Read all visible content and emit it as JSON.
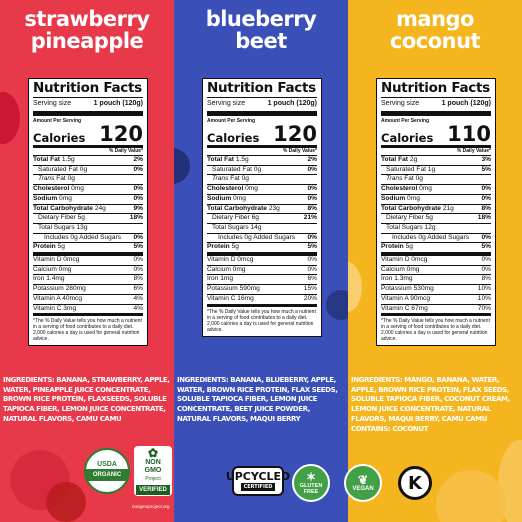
{
  "colors": {
    "strawberry": "#e8394a",
    "blueberry": "#3a4fb8",
    "mango": "#f5b51f"
  },
  "panels": [
    {
      "flavor": [
        "strawberry",
        "pineapple"
      ],
      "label": {
        "title": "Nutrition Facts",
        "serving_size_label": "Serving size",
        "serving_size": "1 pouch (120g)",
        "amount_per_serving": "Amount Per Serving",
        "calories_label": "Calories",
        "calories": "120",
        "dv_header": "% Daily Value*",
        "rows": [
          {
            "label": "Total Fat",
            "amount": "1.5g",
            "pct": "2%"
          },
          {
            "label": "Saturated Fat",
            "amount": "0g",
            "pct": "0%"
          },
          {
            "label": "Trans",
            "amount": "Fat 0g",
            "pct": ""
          },
          {
            "label": "Cholesterol",
            "amount": "0mg",
            "pct": "0%"
          },
          {
            "label": "Sodium",
            "amount": "0mg",
            "pct": "0%"
          },
          {
            "label": "Total Carbohydrate",
            "amount": "24g",
            "pct": "9%"
          },
          {
            "label": "Dietary Fiber",
            "amount": "5g",
            "pct": "18%"
          },
          {
            "label": "Total Sugars",
            "amount": "13g",
            "pct": ""
          },
          {
            "label": "Includes",
            "amount": "0g Added Sugars",
            "pct": "0%"
          },
          {
            "label": "Protein",
            "amount": "5g",
            "pct": "5%"
          }
        ],
        "vitamins": [
          {
            "text": "Vitamin D 0mcg",
            "pct": "0%"
          },
          {
            "text": "Calcium 0mg",
            "pct": "0%"
          },
          {
            "text": "Iron 1.4mg",
            "pct": "8%"
          },
          {
            "text": "Potassium 280mg",
            "pct": "6%"
          },
          {
            "text": "Vitamin A 40mcg",
            "pct": "4%"
          },
          {
            "text": "Vitamin C 3mg",
            "pct": "4%"
          }
        ],
        "footnote": "*The % Daily Value tells you how much a nutrient in a serving of food contributes to a daily diet. 2,000 calories a day is used for general nutrition advice."
      },
      "ingredients": "INGREDIENTS: BANANA, STRAWBERRY, APPLE, WATER, PINEAPPLE JUICE CONCENTRATE, BROWN RICE PROTEIN, FLAXSEEDS, SOLUBLE TAPIOCA FIBER, LEMON JUICE CONCENTRATE, NATURAL FLAVORS, CAMU CAMU",
      "contains": ""
    },
    {
      "flavor": [
        "blueberry",
        "beet"
      ],
      "label": {
        "title": "Nutrition Facts",
        "serving_size_label": "Serving size",
        "serving_size": "1 pouch (120g)",
        "amount_per_serving": "Amount Per Serving",
        "calories_label": "Calories",
        "calories": "120",
        "dv_header": "% Daily Value*",
        "rows": [
          {
            "label": "Total Fat",
            "amount": "1.5g",
            "pct": "2%"
          },
          {
            "label": "Saturated Fat",
            "amount": "0g",
            "pct": "0%"
          },
          {
            "label": "Trans",
            "amount": "Fat 0g",
            "pct": ""
          },
          {
            "label": "Cholesterol",
            "amount": "0mg",
            "pct": "0%"
          },
          {
            "label": "Sodium",
            "amount": "0mg",
            "pct": "0%"
          },
          {
            "label": "Total Carbohydrate",
            "amount": "23g",
            "pct": "8%"
          },
          {
            "label": "Dietary Fiber",
            "amount": "6g",
            "pct": "21%"
          },
          {
            "label": "Total Sugars",
            "amount": "14g",
            "pct": ""
          },
          {
            "label": "Includes",
            "amount": "0g Added Sugars",
            "pct": "0%"
          },
          {
            "label": "Protein",
            "amount": "5g",
            "pct": "5%"
          }
        ],
        "vitamins": [
          {
            "text": "Vitamin D 0mcg",
            "pct": "0%"
          },
          {
            "text": "Calcium 0mg",
            "pct": "0%"
          },
          {
            "text": "Iron 1mg",
            "pct": "6%"
          },
          {
            "text": "Potassium 590mg",
            "pct": "15%"
          },
          {
            "text": "Vitamin C 16mg",
            "pct": "20%"
          }
        ],
        "footnote": "*The % Daily Value tells you how much a nutrient in a serving of food contributes to a daily diet. 2,000 calories a day is used for general nutrition advice."
      },
      "ingredients": "INGREDIENTS: BANANA, BLUEBERRY, APPLE, WATER, BROWN RICE PROTEIN, FLAX SEEDS, SOLUBLE TAPIOCA FIBER, LEMON JUICE CONCENTRATE, BEET JUICE POWDER, NATURAL FLAVORS, MAQUI BERRY",
      "contains": ""
    },
    {
      "flavor": [
        "mango",
        "coconut"
      ],
      "label": {
        "title": "Nutrition Facts",
        "serving_size_label": "Serving size",
        "serving_size": "1 pouch (120g)",
        "amount_per_serving": "Amount Per Serving",
        "calories_label": "Calories",
        "calories": "110",
        "dv_header": "% Daily Value*",
        "rows": [
          {
            "label": "Total Fat",
            "amount": "2g",
            "pct": "3%"
          },
          {
            "label": "Saturated Fat",
            "amount": "1g",
            "pct": "5%"
          },
          {
            "label": "Trans",
            "amount": "Fat 0g",
            "pct": ""
          },
          {
            "label": "Cholesterol",
            "amount": "0mg",
            "pct": "0%"
          },
          {
            "label": "Sodium",
            "amount": "0mg",
            "pct": "0%"
          },
          {
            "label": "Total Carbohydrate",
            "amount": "21g",
            "pct": "8%"
          },
          {
            "label": "Dietary Fiber",
            "amount": "5g",
            "pct": "18%"
          },
          {
            "label": "Total Sugars",
            "amount": "12g",
            "pct": ""
          },
          {
            "label": "Includes",
            "amount": "0g Added Sugars",
            "pct": "0%"
          },
          {
            "label": "Protein",
            "amount": "5g",
            "pct": "5%"
          }
        ],
        "vitamins": [
          {
            "text": "Vitamin D 0mcg",
            "pct": "0%"
          },
          {
            "text": "Calcium 0mg",
            "pct": "0%"
          },
          {
            "text": "Iron 1.3mg",
            "pct": "8%"
          },
          {
            "text": "Potassium 530mg",
            "pct": "10%"
          },
          {
            "text": "Vitamin A 90mcg",
            "pct": "10%"
          },
          {
            "text": "Vitamin C 67mg",
            "pct": "70%"
          }
        ],
        "footnote": "*The % Daily Value tells you how much a nutrient in a serving of food contributes to a daily diet. 2,000 calories a day is used for general nutrition advice."
      },
      "ingredients": "INGREDIENTS: MANGO, BANANA, WATER, APPLE, BROWN RICE PROTEIN, FLAX SEEDS, SOLUBLE TAPIOCA FIBER, COCONUT CREAM, LEMON JUICE CONCENTRATE, NATURAL FLAVORS, MAQUI BERRY, CAMU CAMU",
      "contains": "CONTAINS: COCONUT"
    }
  ],
  "badges": {
    "usda_top": "USDA",
    "usda_bottom": "ORGANIC",
    "nongmo_line1": "NON",
    "nongmo_line2": "GMO",
    "nongmo_line3": "Project",
    "nongmo_verified": "VERIFIED",
    "nongmo_url": "nongmoproject.org",
    "upcycled_main": "UPCYCLED",
    "upcycled_sub": "CERTIFIED",
    "gluten_free_line1": "GLUTEN",
    "gluten_free_line2": "FREE",
    "vegan": "VEGAN",
    "kosher": "K"
  }
}
